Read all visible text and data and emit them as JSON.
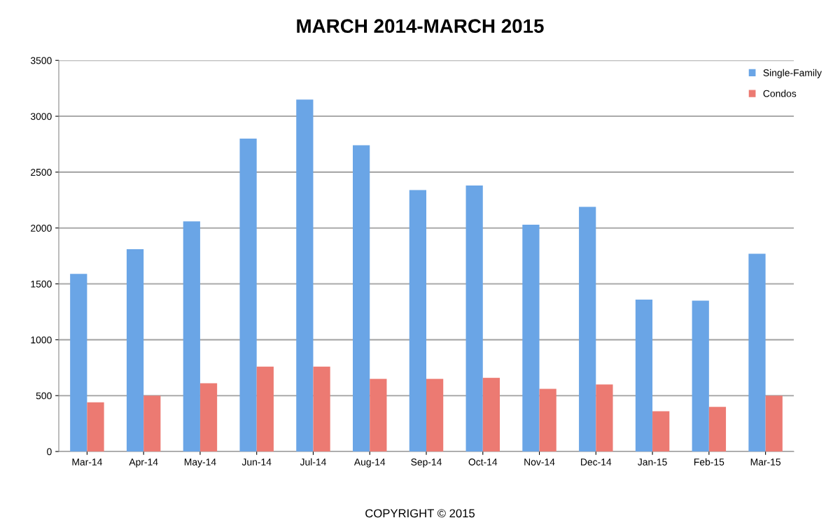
{
  "chart_data": {
    "type": "bar",
    "title": "MARCH 2014-MARCH 2015",
    "categories": [
      "Mar-14",
      "Apr-14",
      "May-14",
      "Jun-14",
      "Jul-14",
      "Aug-14",
      "Sep-14",
      "Oct-14",
      "Nov-14",
      "Dec-14",
      "Jan-15",
      "Feb-15",
      "Mar-15"
    ],
    "series": [
      {
        "name": "Single-Family",
        "color": "#6aa5e6",
        "values": [
          1590,
          1810,
          2060,
          2800,
          3150,
          2740,
          2340,
          2380,
          2030,
          2190,
          1360,
          1350,
          1770
        ]
      },
      {
        "name": "Condos",
        "color": "#ec7a72",
        "values": [
          440,
          500,
          610,
          760,
          760,
          650,
          650,
          660,
          560,
          600,
          360,
          400,
          500
        ]
      }
    ],
    "ylim": [
      0,
      3500
    ],
    "yticks": [
      0,
      500,
      1000,
      1500,
      2000,
      2500,
      3000,
      3500
    ],
    "grid": "y",
    "legend": "top right",
    "annotations": [
      "COPYRIGHT © 2015"
    ]
  }
}
